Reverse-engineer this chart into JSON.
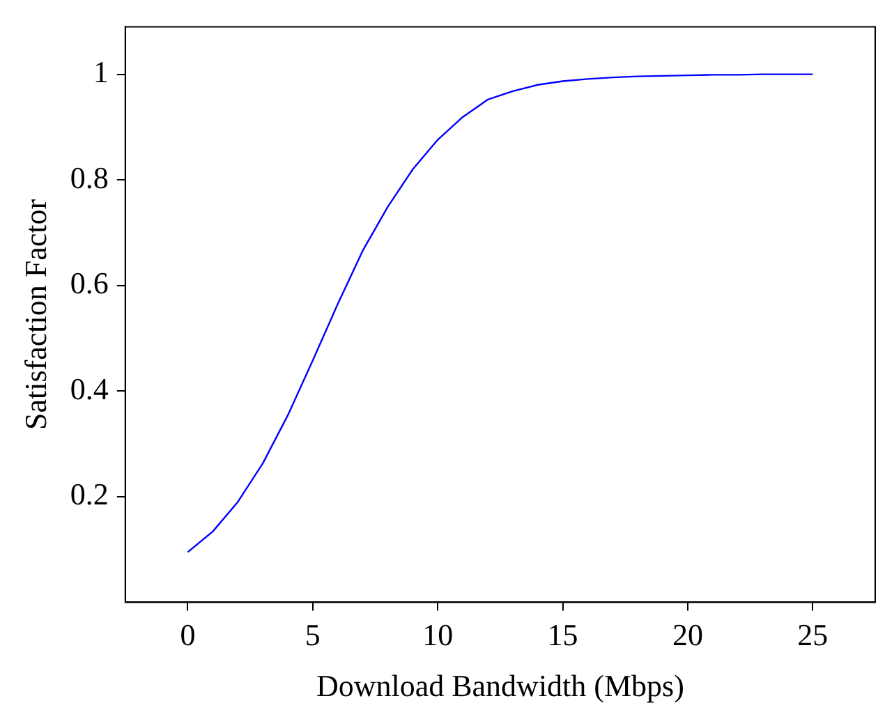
{
  "chart_data": {
    "type": "line",
    "xlabel": "Download Bandwidth (Mbps)",
    "ylabel": "Satisfaction Factor",
    "x": [
      0,
      1,
      2,
      3,
      4,
      5,
      6,
      7,
      8,
      9,
      10,
      11,
      12,
      13,
      14,
      15,
      16,
      17,
      18,
      19,
      20,
      21,
      22,
      23,
      24,
      25
    ],
    "values": [
      0.095,
      0.134,
      0.19,
      0.263,
      0.354,
      0.458,
      0.565,
      0.666,
      0.749,
      0.82,
      0.876,
      0.919,
      0.952,
      0.968,
      0.98,
      0.987,
      0.991,
      0.994,
      0.996,
      0.997,
      0.998,
      0.999,
      0.999,
      1,
      1,
      1
    ],
    "color": "#0000ff",
    "marker": "none",
    "line_style": "solid",
    "xlim": [
      -2.5,
      27.5
    ],
    "xticks": [
      0,
      5,
      10,
      15,
      20,
      25
    ],
    "ylim": [
      0,
      1.09
    ],
    "yticks": [
      0.2,
      0.4,
      0.6,
      0.8,
      1
    ]
  }
}
